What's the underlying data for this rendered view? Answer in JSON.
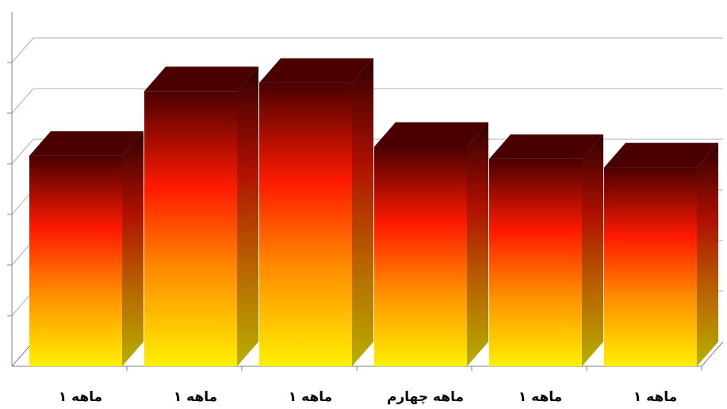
{
  "chart_data": {
    "type": "bar",
    "style": "3d-column",
    "categories": [
      "ماهه ۱",
      "ماهه ۱",
      "ماهه ۱",
      "ماهه چهارم",
      "ماهه ۱",
      "ماهه ۱"
    ],
    "values": [
      3.98,
      5.2,
      5.36,
      4.15,
      3.92,
      3.76
    ],
    "ylim": [
      0,
      6.7
    ],
    "grid": true,
    "legend": "none",
    "colors": {
      "bar_top": "#4a0000",
      "bar_mid": "#ff1a00",
      "bar_low": "#ff8c00",
      "bar_bottom": "#fff000",
      "gridline": "#b0b0b0"
    }
  }
}
